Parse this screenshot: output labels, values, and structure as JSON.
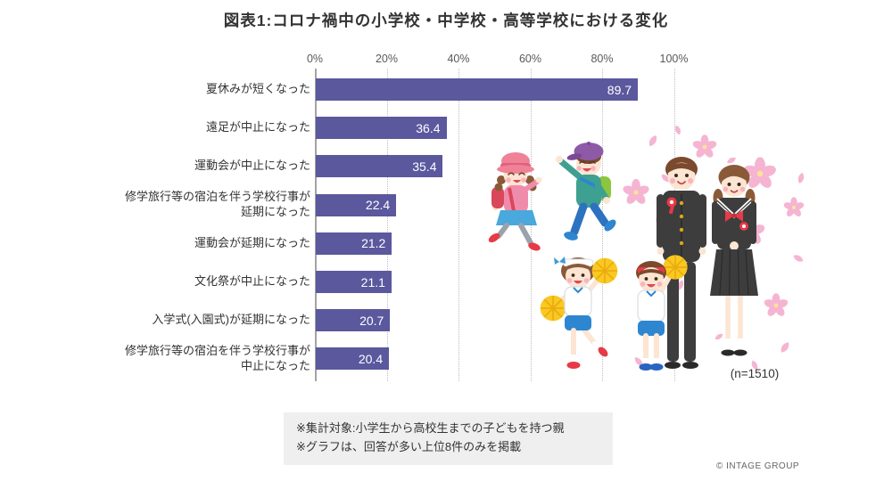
{
  "title": "図表1:コロナ禍中の小学校・中学校・高等学校における変化",
  "chart_data": {
    "type": "bar",
    "orientation": "horizontal",
    "title": "図表1:コロナ禍中の小学校・中学校・高等学校における変化",
    "categories": [
      "夏休みが短くなった",
      "遠足が中止になった",
      "運動会が中止になった",
      "修学旅行等の宿泊を伴う学校行事が\n延期になった",
      "運動会が延期になった",
      "文化祭が中止になった",
      "入学式(入園式)が延期になった",
      "修学旅行等の宿泊を伴う学校行事が\n中止になった"
    ],
    "values": [
      89.7,
      36.4,
      35.4,
      22.4,
      21.2,
      21.1,
      20.7,
      20.4
    ],
    "x_ticks": [
      "0%",
      "20%",
      "40%",
      "60%",
      "80%",
      "100%"
    ],
    "xlim": [
      0,
      100
    ],
    "grid": "vertical-dotted",
    "legend": "none",
    "bar_color": "#5b589e",
    "value_label_color": "#ffffff"
  },
  "sample_size": "(n=1510)",
  "notes": [
    "※集計対象:小学生から高校生までの子どもを持つ親",
    "※グラフは、回答が多い上位8件のみを掲載"
  ],
  "copyright": "© INTAGE GROUP",
  "illustration": {
    "figures": [
      "cherry-blossoms",
      "running-girl",
      "running-boy",
      "uniform-boy",
      "uniform-girl",
      "cheer-girl",
      "cheer-boy"
    ]
  }
}
